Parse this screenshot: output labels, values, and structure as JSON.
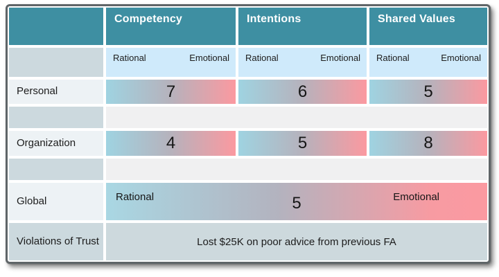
{
  "table": {
    "title": "trust-evaluation-matrix",
    "columns": [
      {
        "label": "Competency"
      },
      {
        "label": "Intentions"
      },
      {
        "label": "Shared Values"
      }
    ],
    "scale_labels": {
      "left": "Rational",
      "right": "Emotional"
    },
    "rows": [
      {
        "label": "Personal",
        "values": [
          7,
          6,
          5
        ]
      },
      {
        "label": "Organization",
        "values": [
          4,
          5,
          8
        ]
      }
    ],
    "global_row": {
      "label": "Global",
      "left_label": "Rational",
      "right_label": "Emotional",
      "value": 5
    },
    "violations_row": {
      "label": "Violations of Trust",
      "text": "Lost $25K on poor advice from previous FA"
    }
  },
  "colors": {
    "header_teal": "#3e8fa2",
    "subheader_blue": "#cfeafb",
    "row_label_light": "#edf2f5",
    "row_label_gray": "#ccd9de",
    "spacer_gray": "#f0f0f1",
    "violations_bg": "#cdd9dd",
    "gradient_left": "#9fd3e1",
    "gradient_mid": "#b6b2bc",
    "gradient_right": "#fb99a0",
    "frame_border": "#5f6568",
    "header_text": "#ffffff",
    "body_text": "#1c1c1c"
  }
}
